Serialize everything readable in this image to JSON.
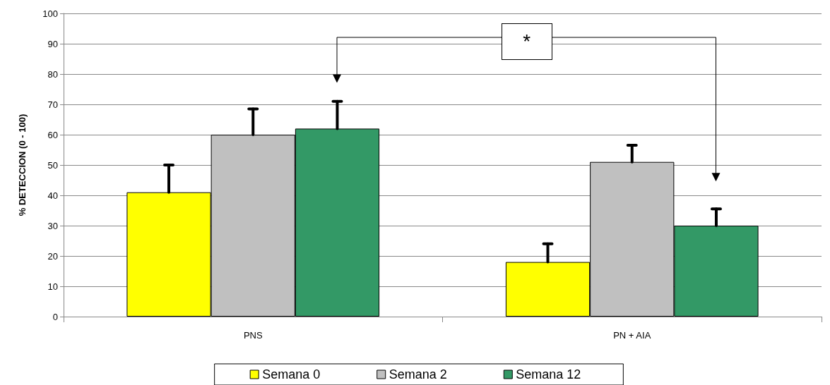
{
  "chart_data": {
    "type": "bar",
    "ylabel": "% DETECCION (0 - 100)",
    "categories": [
      "PNS",
      "PN + AIA"
    ],
    "series": [
      {
        "name": "Semana 0",
        "color": "#ffff00",
        "values": [
          41,
          18
        ],
        "errors": [
          [
            41,
            50
          ],
          [
            18,
            24
          ]
        ]
      },
      {
        "name": "Semana 2",
        "color": "#c0c0c0",
        "values": [
          60,
          51
        ],
        "errors": [
          [
            60,
            68.5
          ],
          [
            51,
            56.5
          ]
        ]
      },
      {
        "name": "Semana 12",
        "color": "#339966",
        "values": [
          62,
          30
        ],
        "errors": [
          [
            62,
            71
          ],
          [
            30,
            35.5
          ]
        ]
      }
    ],
    "ylim": [
      0,
      100
    ],
    "yticks": [
      0,
      10,
      20,
      30,
      40,
      50,
      60,
      70,
      80,
      90,
      100
    ],
    "grid": "y",
    "legend": "bottom",
    "annotations": [
      "*"
    ]
  }
}
